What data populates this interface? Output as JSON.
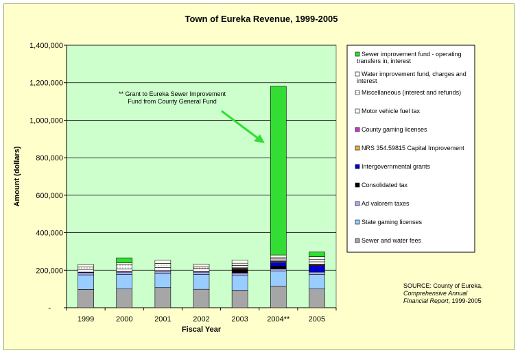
{
  "chart_data": {
    "type": "bar",
    "stacked": true,
    "title": "Town of Eureka  Revenue, 1999-2005",
    "xlabel": "Fiscal Year",
    "ylabel": "Amount (dollars)",
    "ylim": [
      0,
      1400000
    ],
    "yticks": [
      {
        "value": 0,
        "label": "-"
      },
      {
        "value": 200000,
        "label": "200,000"
      },
      {
        "value": 400000,
        "label": "400,000"
      },
      {
        "value": 600000,
        "label": "600,000"
      },
      {
        "value": 800000,
        "label": "800,000"
      },
      {
        "value": 1000000,
        "label": "1,000,000"
      },
      {
        "value": 1200000,
        "label": "1,200,000"
      },
      {
        "value": 1400000,
        "label": "1,400,000"
      }
    ],
    "categories": [
      "1999",
      "2000",
      "2001",
      "2002",
      "2003",
      "2004**",
      "2005"
    ],
    "series": [
      {
        "name": "Sewer and water fees",
        "color": "#a6a6a6",
        "values": [
          97000,
          100000,
          107000,
          98000,
          93000,
          115000,
          100000
        ]
      },
      {
        "name": "State gaming licenses",
        "color": "#99ccff",
        "values": [
          78000,
          78000,
          76000,
          80000,
          80000,
          80000,
          78000
        ]
      },
      {
        "name": "Ad valorem taxes",
        "color": "#aaaaee",
        "values": [
          12000,
          12000,
          12000,
          12000,
          12000,
          12000,
          12000
        ]
      },
      {
        "name": "Consolidated tax",
        "color": "#000000",
        "values": [
          0,
          0,
          0,
          0,
          20000,
          15000,
          0
        ]
      },
      {
        "name": "Intergovernmental grants",
        "color": "#0000cc",
        "values": [
          0,
          0,
          0,
          0,
          0,
          20000,
          35000
        ]
      },
      {
        "name": "NRS 354.59815 Capital Improvement",
        "color": "#e8b040",
        "values": [
          0,
          0,
          0,
          0,
          5000,
          5000,
          5000
        ]
      },
      {
        "name": "County gaming licenses",
        "color": "#cc33cc",
        "values": [
          3000,
          3000,
          3000,
          3000,
          3000,
          3000,
          3000
        ]
      },
      {
        "name": "Motor vehicle fuel tax",
        "color": "#ffffff",
        "values": [
          14000,
          14000,
          16000,
          16000,
          12000,
          10000,
          12000
        ]
      },
      {
        "name": "Miscellaneous (interest and refunds)",
        "color": "#e8e8e8",
        "values": [
          13000,
          23000,
          22000,
          10000,
          12000,
          7000,
          12000
        ]
      },
      {
        "name": "Water improvement fund, charges and interest",
        "color": "#ffffee",
        "values": [
          14000,
          9000,
          17000,
          14000,
          17000,
          14000,
          15000
        ]
      },
      {
        "name": "Sewer improvement fund - operating transfers in, interest",
        "color": "#33dd33",
        "values": [
          0,
          27000,
          0,
          0,
          0,
          900000,
          25000
        ]
      }
    ],
    "annotation": {
      "lines": [
        "** Grant to Eureka Sewer Improvement",
        "Fund from County General Fund"
      ],
      "arrow_color": "#33dd33"
    },
    "source": {
      "prefix": "SOURCE: County of Eureka,",
      "title_line1": "Comprehensive Annual",
      "title_line2_italic": "Financial Report",
      "title_line2_tail": ", 1999-2005"
    },
    "legend_position": "right",
    "plot_background": "#ccffcc",
    "grid": {
      "horizontal": true,
      "vertical": false
    }
  }
}
